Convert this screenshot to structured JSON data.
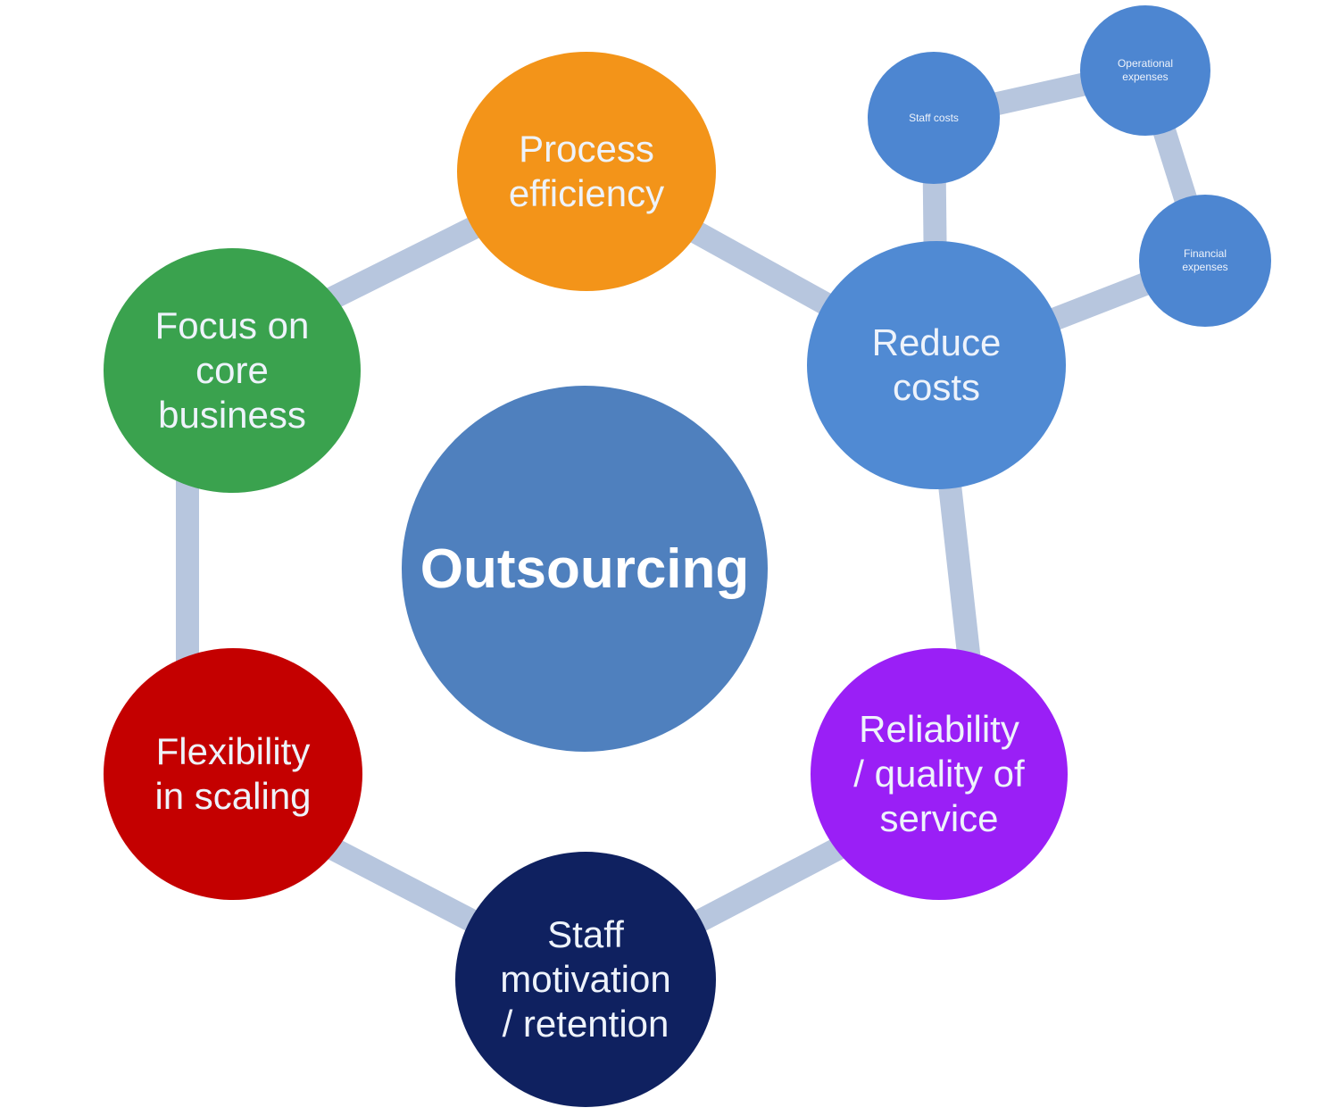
{
  "colors": {
    "ring": "#b7c6de",
    "center": "#4f80be",
    "process_efficiency": "#f39419",
    "focus_on_core_business": "#3aa24e",
    "reduce_costs": "#508ad3",
    "flexibility_in_scaling": "#c40000",
    "reliability_quality": "#9a1ff6",
    "staff_motivation": "#0f2160",
    "small_nodes": "#4d86d1"
  },
  "center": {
    "label": "Outsourcing"
  },
  "nodes": {
    "process_efficiency": "Process\nefficiency",
    "focus_on_core_business": "Focus on\ncore\nbusiness",
    "reduce_costs": "Reduce\ncosts",
    "flexibility_in_scaling": "Flexibility\nin scaling",
    "reliability_quality": "Reliability\n/ quality of\nservice",
    "staff_motivation": "Staff\nmotivation\n/ retention"
  },
  "sub_nodes": {
    "staff_costs": "Staff costs",
    "operational_expenses": "Operational\nexpenses",
    "financial_expenses": "Financial\nexpenses"
  }
}
